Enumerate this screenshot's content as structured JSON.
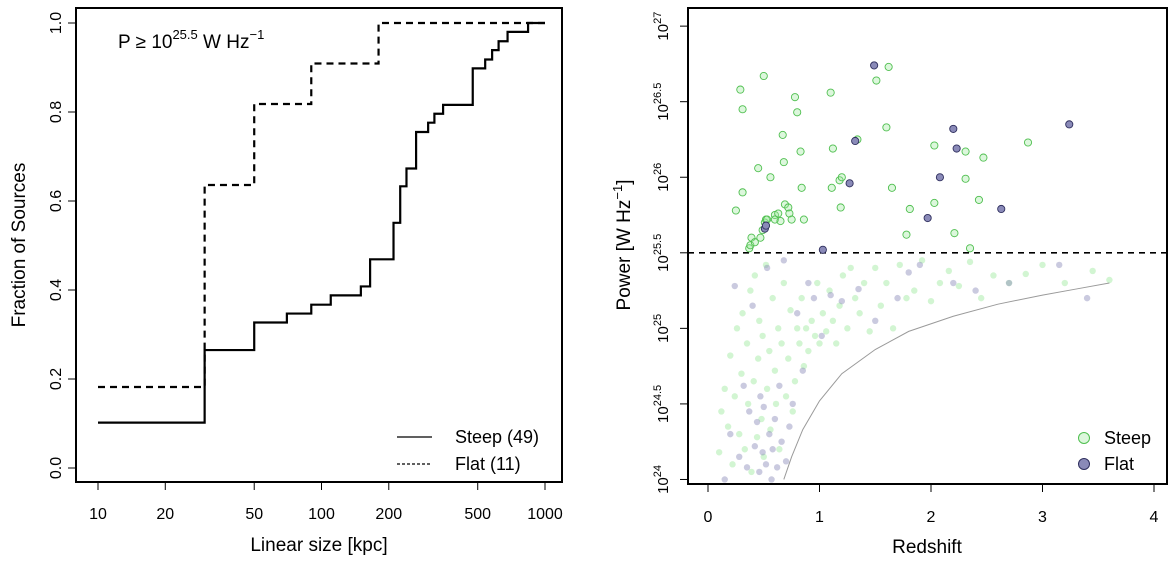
{
  "chart_data": [
    {
      "type": "line",
      "annotation": {
        "main": "P ≥ 10",
        "sup": "25.5",
        "unit": " W Hz",
        "unit_sup": "−1"
      },
      "xlabel": "Linear size [kpc]",
      "ylabel": "Fraction of Sources",
      "xscale": "log",
      "xlim": [
        10,
        1000
      ],
      "ylim": [
        0,
        1
      ],
      "xticks": [
        10,
        20,
        50,
        100,
        200,
        500,
        1000
      ],
      "xtick_labels": [
        "10",
        "20",
        "50",
        "100",
        "200",
        "500",
        "1000"
      ],
      "yticks": [
        0.0,
        0.2,
        0.4,
        0.6,
        0.8,
        1.0
      ],
      "ytick_labels": [
        "0.0",
        "0.2",
        "0.4",
        "0.6",
        "0.8",
        "1.0"
      ],
      "legend": {
        "position": "bottom-right",
        "entries": [
          "Steep (49)",
          "Flat (11)"
        ]
      },
      "series": [
        {
          "name": "Steep (49)",
          "style": "solid",
          "x": [
            10,
            30,
            30,
            50,
            70,
            90,
            110,
            150,
            165,
            180,
            210,
            225,
            240,
            265,
            300,
            320,
            350,
            380,
            475,
            490,
            540,
            580,
            620,
            680,
            750,
            840,
            1000
          ],
          "y": [
            0.102,
            0.102,
            0.265,
            0.327,
            0.347,
            0.367,
            0.388,
            0.408,
            0.469,
            0.469,
            0.551,
            0.633,
            0.673,
            0.755,
            0.776,
            0.796,
            0.816,
            0.816,
            0.898,
            0.898,
            0.918,
            0.939,
            0.959,
            0.98,
            0.98,
            1.0,
            1.0
          ]
        },
        {
          "name": "Flat (11)",
          "style": "dashed",
          "x": [
            10,
            30,
            30,
            50,
            90,
            180,
            1000
          ],
          "y": [
            0.182,
            0.182,
            0.636,
            0.818,
            0.909,
            1.0,
            1.0
          ]
        }
      ]
    },
    {
      "type": "scatter",
      "xlabel": "Redshift",
      "ylabel": "Power [W Hz",
      "ylabel_sup": "−1",
      "ylabel_close": "]",
      "xlim": [
        -0.1,
        4.1
      ],
      "ylim": [
        23.97,
        27.12
      ],
      "yscale": "log",
      "xticks": [
        0,
        1,
        2,
        3,
        4
      ],
      "xtick_labels": [
        "0",
        "1",
        "2",
        "3",
        "4"
      ],
      "yticks": [
        24,
        24.5,
        25,
        25.5,
        26,
        26.5,
        27
      ],
      "ytick_labels": [
        {
          "base": "10",
          "exp": "24"
        },
        {
          "base": "10",
          "exp": "24.5"
        },
        {
          "base": "10",
          "exp": "25"
        },
        {
          "base": "10",
          "exp": "25.5"
        },
        {
          "base": "10",
          "exp": "26"
        },
        {
          "base": "10",
          "exp": "26.5"
        },
        {
          "base": "10",
          "exp": "27"
        }
      ],
      "threshold_logP": 25.5,
      "legend": {
        "position": "bottom-right",
        "entries": [
          "Steep",
          "Flat"
        ]
      },
      "colors": {
        "steep": "#9be89b",
        "flat": "#8a8ab8"
      },
      "series": [
        {
          "name": "Steep",
          "x": [
            0.25,
            0.29,
            0.31,
            0.31,
            0.37,
            0.38,
            0.39,
            0.42,
            0.45,
            0.47,
            0.49,
            0.5,
            0.51,
            0.52,
            0.52,
            0.53,
            0.56,
            0.6,
            0.6,
            0.63,
            0.65,
            0.67,
            0.68,
            0.69,
            0.72,
            0.73,
            0.75,
            0.78,
            0.8,
            0.83,
            0.84,
            0.86,
            1.1,
            1.11,
            1.12,
            1.18,
            1.19,
            1.2,
            1.34,
            1.51,
            1.6,
            1.62,
            1.65,
            1.78,
            1.81,
            2.03,
            2.03,
            2.21,
            2.31,
            2.31,
            2.35,
            2.43,
            2.47,
            2.87
          ],
          "y": [
            25.78,
            26.58,
            25.9,
            26.45,
            25.53,
            25.55,
            25.6,
            25.57,
            26.06,
            25.6,
            25.65,
            26.67,
            25.7,
            25.72,
            25.68,
            25.72,
            26.0,
            25.75,
            25.72,
            25.76,
            25.71,
            26.28,
            26.1,
            25.82,
            25.8,
            25.76,
            25.72,
            26.53,
            26.43,
            26.17,
            25.93,
            25.72,
            26.56,
            25.93,
            26.19,
            25.98,
            25.8,
            26.0,
            26.25,
            26.64,
            26.33,
            26.73,
            25.93,
            25.62,
            25.79,
            26.21,
            25.83,
            25.63,
            25.99,
            26.17,
            25.53,
            25.85,
            26.13,
            26.23
          ]
        },
        {
          "name": "Flat",
          "x": [
            0.51,
            0.52,
            1.03,
            1.27,
            1.32,
            1.49,
            1.97,
            2.08,
            2.2,
            2.23,
            2.63,
            3.24
          ],
          "y": [
            25.66,
            25.68,
            25.52,
            25.96,
            26.24,
            26.74,
            25.73,
            26.0,
            26.32,
            26.19,
            25.79,
            26.35
          ]
        }
      ],
      "background_series": [
        {
          "name": "steep-background",
          "x": [
            0.1,
            0.12,
            0.15,
            0.18,
            0.2,
            0.22,
            0.24,
            0.26,
            0.28,
            0.3,
            0.31,
            0.33,
            0.35,
            0.36,
            0.38,
            0.39,
            0.41,
            0.42,
            0.44,
            0.45,
            0.46,
            0.48,
            0.49,
            0.5,
            0.52,
            0.53,
            0.55,
            0.56,
            0.58,
            0.6,
            0.61,
            0.63,
            0.64,
            0.66,
            0.68,
            0.7,
            0.72,
            0.74,
            0.76,
            0.78,
            0.8,
            0.82,
            0.84,
            0.86,
            0.88,
            0.9,
            0.93,
            0.96,
            0.98,
            1.0,
            1.03,
            1.06,
            1.09,
            1.12,
            1.15,
            1.18,
            1.21,
            1.25,
            1.28,
            1.32,
            1.36,
            1.4,
            1.45,
            1.5,
            1.55,
            1.6,
            1.66,
            1.72,
            1.78,
            1.85,
            1.92,
            2.0,
            2.08,
            2.16,
            2.25,
            2.35,
            2.45,
            2.56,
            2.7,
            2.85,
            3.0,
            3.2,
            3.45,
            3.6
          ],
          "y": [
            24.18,
            24.45,
            24.6,
            24.35,
            24.82,
            24.1,
            24.55,
            25.0,
            24.3,
            24.7,
            25.1,
            24.2,
            24.9,
            24.5,
            25.25,
            24.05,
            24.65,
            25.35,
            24.28,
            24.8,
            25.05,
            24.4,
            24.95,
            24.15,
            25.42,
            24.6,
            24.85,
            24.33,
            25.2,
            24.72,
            24.5,
            25.0,
            24.2,
            24.9,
            25.3,
            24.55,
            24.8,
            25.12,
            24.45,
            24.65,
            25.0,
            24.9,
            25.2,
            24.75,
            25.0,
            24.85,
            25.05,
            24.95,
            25.3,
            24.9,
            25.1,
            24.98,
            25.25,
            25.05,
            24.9,
            25.15,
            25.35,
            25.0,
            25.4,
            25.2,
            25.1,
            25.3,
            24.98,
            25.4,
            25.15,
            25.3,
            25.0,
            25.42,
            25.2,
            25.25,
            25.45,
            25.18,
            25.3,
            25.38,
            25.28,
            25.44,
            25.2,
            25.35,
            25.3,
            25.36,
            25.42,
            25.3,
            25.38,
            25.32
          ]
        },
        {
          "name": "flat-background",
          "x": [
            0.15,
            0.2,
            0.24,
            0.28,
            0.32,
            0.35,
            0.37,
            0.4,
            0.42,
            0.44,
            0.46,
            0.47,
            0.49,
            0.5,
            0.52,
            0.53,
            0.55,
            0.57,
            0.58,
            0.6,
            0.62,
            0.64,
            0.66,
            0.68,
            0.7,
            0.73,
            0.76,
            0.8,
            0.85,
            0.9,
            0.95,
            1.02,
            1.1,
            1.2,
            1.35,
            1.5,
            1.7,
            1.8,
            1.9,
            2.2,
            2.4,
            2.7,
            3.15,
            3.4
          ],
          "y": [
            24.0,
            24.3,
            25.28,
            24.15,
            24.62,
            24.08,
            24.45,
            25.15,
            24.22,
            24.38,
            24.05,
            24.55,
            24.18,
            24.48,
            24.1,
            25.4,
            24.3,
            24.0,
            24.2,
            24.4,
            24.08,
            24.62,
            24.25,
            25.45,
            24.12,
            24.35,
            24.5,
            25.1,
            24.72,
            25.3,
            25.2,
            24.95,
            25.22,
            25.18,
            25.26,
            25.05,
            25.2,
            25.37,
            25.42,
            25.3,
            25.25,
            25.3,
            25.42,
            25.2
          ]
        }
      ],
      "curve": {
        "x": [
          0.68,
          0.75,
          0.85,
          1.0,
          1.2,
          1.5,
          1.8,
          2.2,
          2.6,
          3.0,
          3.3,
          3.6
        ],
        "y": [
          24.0,
          24.15,
          24.33,
          24.52,
          24.7,
          24.86,
          24.98,
          25.08,
          25.16,
          25.22,
          25.26,
          25.3
        ]
      }
    }
  ]
}
